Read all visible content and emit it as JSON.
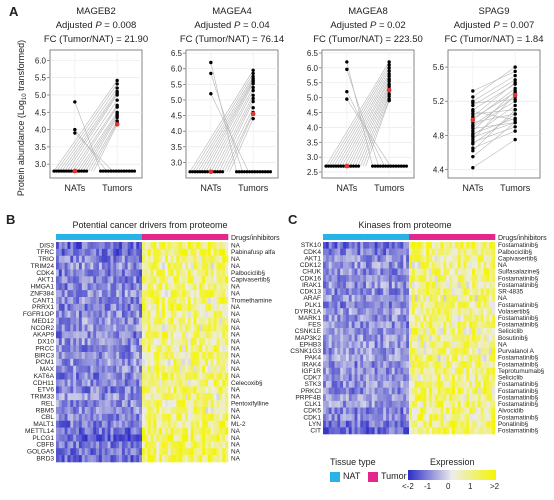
{
  "panel_letters": {
    "a": "A",
    "b": "B",
    "c": "C"
  },
  "panel_a": {
    "ylabel": "Protein abundance (Log10 transformed)",
    "ylabel_main": "Protein abundance (Log",
    "ylabel_sub": "10",
    "ylabel_tail": " transformed)",
    "x_labels": [
      "NATs",
      "Tumors"
    ],
    "p_prefix": "Adjusted ",
    "p_letter": "P",
    "fc_prefix": "FC (Tumor/NAT) = ",
    "mean_color": "#e8332a",
    "point_color": "#000000",
    "line_color": "#b5b5b5"
  },
  "panel_b": {
    "title": "Potential cancer drivers from proteome",
    "drug_header": "Drugs/inhibitors",
    "nat_columns": 30,
    "tumor_columns": 30
  },
  "panel_c": {
    "title": "Kinases from proteome",
    "drug_header": "Drugs/inhibitors",
    "nat_columns": 30,
    "tumor_columns": 30
  },
  "legend": {
    "tissue_title": "Tissue type",
    "nat_label": "NAT",
    "tumor_label": "Tumor",
    "nat_color": "#27b3e8",
    "tumor_color": "#e2288a",
    "expression_title": "Expression",
    "expression_ticks": [
      "<-2",
      "-1",
      "0",
      "1",
      ">2"
    ],
    "low_color": "#2c2cc8",
    "high_color": "#f5f500"
  },
  "chart_data": [
    {
      "type": "scatter",
      "id": "MAGEB2",
      "title": "MAGEB2",
      "p_value": "0.008",
      "fc": "21.90",
      "ylim": [
        2.6,
        6.3
      ],
      "ytick_labels": [
        "3.0",
        "3.5",
        "4.0",
        "4.5",
        "5.0",
        "5.5",
        "6.0"
      ],
      "yticks": [
        3.0,
        3.5,
        4.0,
        4.5,
        5.0,
        5.5,
        6.0
      ],
      "floor": 2.8,
      "nat_mean": 2.8,
      "tumor_mean": 4.15,
      "nat_high": [
        4.8,
        4.0,
        3.9
      ],
      "tumor_values": [
        5.42,
        5.32,
        5.2,
        5.1,
        5.05,
        5.0,
        4.85,
        4.7,
        4.65,
        4.5,
        4.45,
        4.4,
        4.35,
        4.25,
        4.2,
        4.15
      ]
    },
    {
      "type": "scatter",
      "id": "MAGEA4",
      "title": "MAGEA4",
      "p_value": "0.04",
      "fc": "76.14",
      "ylim": [
        2.5,
        6.6
      ],
      "ytick_labels": [
        "3.0",
        "3.5",
        "4.0",
        "4.5",
        "5.0",
        "5.5",
        "6.0",
        "6.5"
      ],
      "yticks": [
        3.0,
        3.5,
        4.0,
        4.5,
        5.0,
        5.5,
        6.0,
        6.5
      ],
      "floor": 2.7,
      "nat_mean": 2.7,
      "tumor_mean": 4.55,
      "nat_high": [
        6.2,
        5.85,
        5.2
      ],
      "tumor_values": [
        5.95,
        5.85,
        5.75,
        5.68,
        5.62,
        5.58,
        5.52,
        5.4,
        5.3,
        5.15,
        5.05,
        4.95,
        4.75,
        4.6,
        4.55,
        4.4
      ]
    },
    {
      "type": "scatter",
      "id": "MAGEA8",
      "title": "MAGEA8",
      "p_value": "0.02",
      "fc": "223.50",
      "ylim": [
        2.3,
        6.6
      ],
      "ytick_labels": [
        "2.5",
        "3.0",
        "3.5",
        "4.0",
        "4.5",
        "5.0",
        "5.5",
        "6.0",
        "6.5"
      ],
      "yticks": [
        2.5,
        3.0,
        3.5,
        4.0,
        4.5,
        5.0,
        5.5,
        6.0,
        6.5
      ],
      "floor": 2.7,
      "nat_mean": 2.7,
      "tumor_mean": 5.25,
      "nat_high": [
        6.2,
        5.95,
        5.2,
        4.95
      ],
      "tumor_values": [
        6.2,
        6.1,
        6.0,
        5.9,
        5.8,
        5.72,
        5.62,
        5.55,
        5.45,
        5.38,
        5.3,
        5.22,
        5.12,
        5.05,
        4.95,
        4.9
      ]
    },
    {
      "type": "scatter",
      "id": "SPAG9",
      "title": "SPAG9",
      "p_value": "0.007",
      "fc": "1.84",
      "ylim": [
        4.3,
        5.8
      ],
      "ytick_labels": [
        "4.4",
        "4.8",
        "5.2",
        "5.6"
      ],
      "yticks": [
        4.4,
        4.8,
        5.2,
        5.6
      ],
      "paired": true,
      "nat_mean": 4.98,
      "tumor_mean": 5.27,
      "pairs": [
        [
          5.32,
          5.55
        ],
        [
          5.2,
          5.5
        ],
        [
          5.15,
          5.45
        ],
        [
          5.1,
          5.4
        ],
        [
          5.05,
          5.1
        ],
        [
          5.02,
          5.42
        ],
        [
          5.0,
          5.3
        ],
        [
          4.98,
          5.35
        ],
        [
          4.95,
          5.05
        ],
        [
          4.92,
          5.25
        ],
        [
          4.9,
          5.2
        ],
        [
          4.88,
          4.95
        ],
        [
          4.85,
          5.32
        ],
        [
          4.82,
          5.0
        ],
        [
          4.8,
          5.15
        ],
        [
          4.78,
          4.95
        ],
        [
          4.75,
          5.28
        ],
        [
          4.72,
          4.9
        ],
        [
          4.7,
          5.05
        ],
        [
          4.65,
          4.85
        ],
        [
          4.62,
          5.1
        ],
        [
          4.55,
          4.95
        ],
        [
          4.42,
          4.75
        ],
        [
          5.25,
          5.6
        ],
        [
          5.18,
          5.22
        ],
        [
          5.08,
          4.98
        ]
      ]
    },
    {
      "type": "heatmap",
      "id": "drivers",
      "title": "Potential cancer drivers from proteome",
      "genes": [
        "DIS3",
        "TFRC",
        "TRIO",
        "TRIM24",
        "CDK4",
        "AKT1",
        "HMGA1",
        "ZNF384",
        "CANT1",
        "PRRX1",
        "FGFR1OP",
        "MED12",
        "NCOR2",
        "AKAP9",
        "DX10",
        "PRCC",
        "BIRC3",
        "PCM1",
        "MAX",
        "KAT6A",
        "CDH11",
        "ETV6",
        "TRIM33",
        "REL",
        "RBM5",
        "CBL",
        "MALT1",
        "METTL14",
        "PLCG1",
        "CBFB",
        "GOLGA5",
        "BRD3"
      ],
      "drugs": [
        "NA",
        "Pabinafusp alfa",
        "NA",
        "NA",
        "Palbociclib§",
        "Capivasertib§",
        "NA",
        "NA",
        "Tromethamine",
        "NA",
        "NA",
        "NA",
        "NA",
        "NA",
        "NA",
        "NA",
        "NA",
        "NA",
        "NA",
        "NA",
        "Celecoxib§",
        "NA",
        "NA",
        "Pentoxifylline",
        "NA",
        "NA",
        "ML-2",
        "NA",
        "NA",
        "NA",
        "NA",
        "NA"
      ],
      "trend": [
        -1.5,
        -1.5,
        -1.2,
        -1.0,
        -1.3,
        -1.2,
        -1.2,
        -1.0,
        -1.1,
        -1.2,
        -1.1,
        -1.0,
        -1.0,
        -1.2,
        -1.0,
        -1.1,
        -1.1,
        -1.0,
        -1.0,
        -1.2,
        -1.1,
        -1.2,
        -1.0,
        -1.1,
        -1.0,
        -1.1,
        -1.3,
        -1.4,
        -1.6,
        -1.2,
        -1.3,
        -1.4
      ],
      "seed": 7
    },
    {
      "type": "heatmap",
      "id": "kinases",
      "title": "Kinases from proteome",
      "genes": [
        "STK10",
        "CDK4",
        "AKT1",
        "CDK12",
        "CHUK",
        "CDK16",
        "IRAK1",
        "CDK13",
        "ARAF",
        "PLK1",
        "DYRK1A",
        "MARK1",
        "FES",
        "CSNK1E",
        "MAP3K2",
        "EPHB3",
        "CSNK1G3",
        "PAK4",
        "IRAK4",
        "IGF1R",
        "CDK7",
        "STK3",
        "PRKCI",
        "PRPF4B",
        "CLK1",
        "CDK5",
        "CDK1",
        "LYN",
        "CIT"
      ],
      "drugs": [
        "Fostamatinib§",
        "Palbociclib§",
        "Capivasertib§",
        "NA",
        "Sulfasalazine§",
        "Fostamatinib§",
        "Fostamatinib§",
        "SR-4835",
        "NA",
        "Fostamatinib§",
        "Volasertib§",
        "Fostamatinib§",
        "Fostamatinib§",
        "Seliciclib",
        "Bosutinib§",
        "NA",
        "Purvalanol A",
        "Fostamatinib§",
        "Fostamatinib§",
        "Teprotumumab§",
        "Seliciclib",
        "Fostamatinib§",
        "Fostamatinib§",
        "Fostamatinib§",
        "Fostamatinib§",
        "Alvocidib",
        "Fostamatinib§",
        "Ponatinib§",
        "Fostamatinib§"
      ],
      "trend": [
        -1.4,
        -1.2,
        -1.0,
        -1.0,
        -1.1,
        -1.0,
        -1.0,
        -1.1,
        -0.9,
        -1.2,
        -0.9,
        -1.0,
        -1.1,
        -1.0,
        -0.9,
        -1.0,
        -1.0,
        -0.9,
        -1.1,
        -1.0,
        -1.0,
        -1.0,
        -1.1,
        -1.0,
        -1.0,
        -1.2,
        -1.1,
        -1.3,
        -1.4
      ],
      "seed": 19
    }
  ]
}
